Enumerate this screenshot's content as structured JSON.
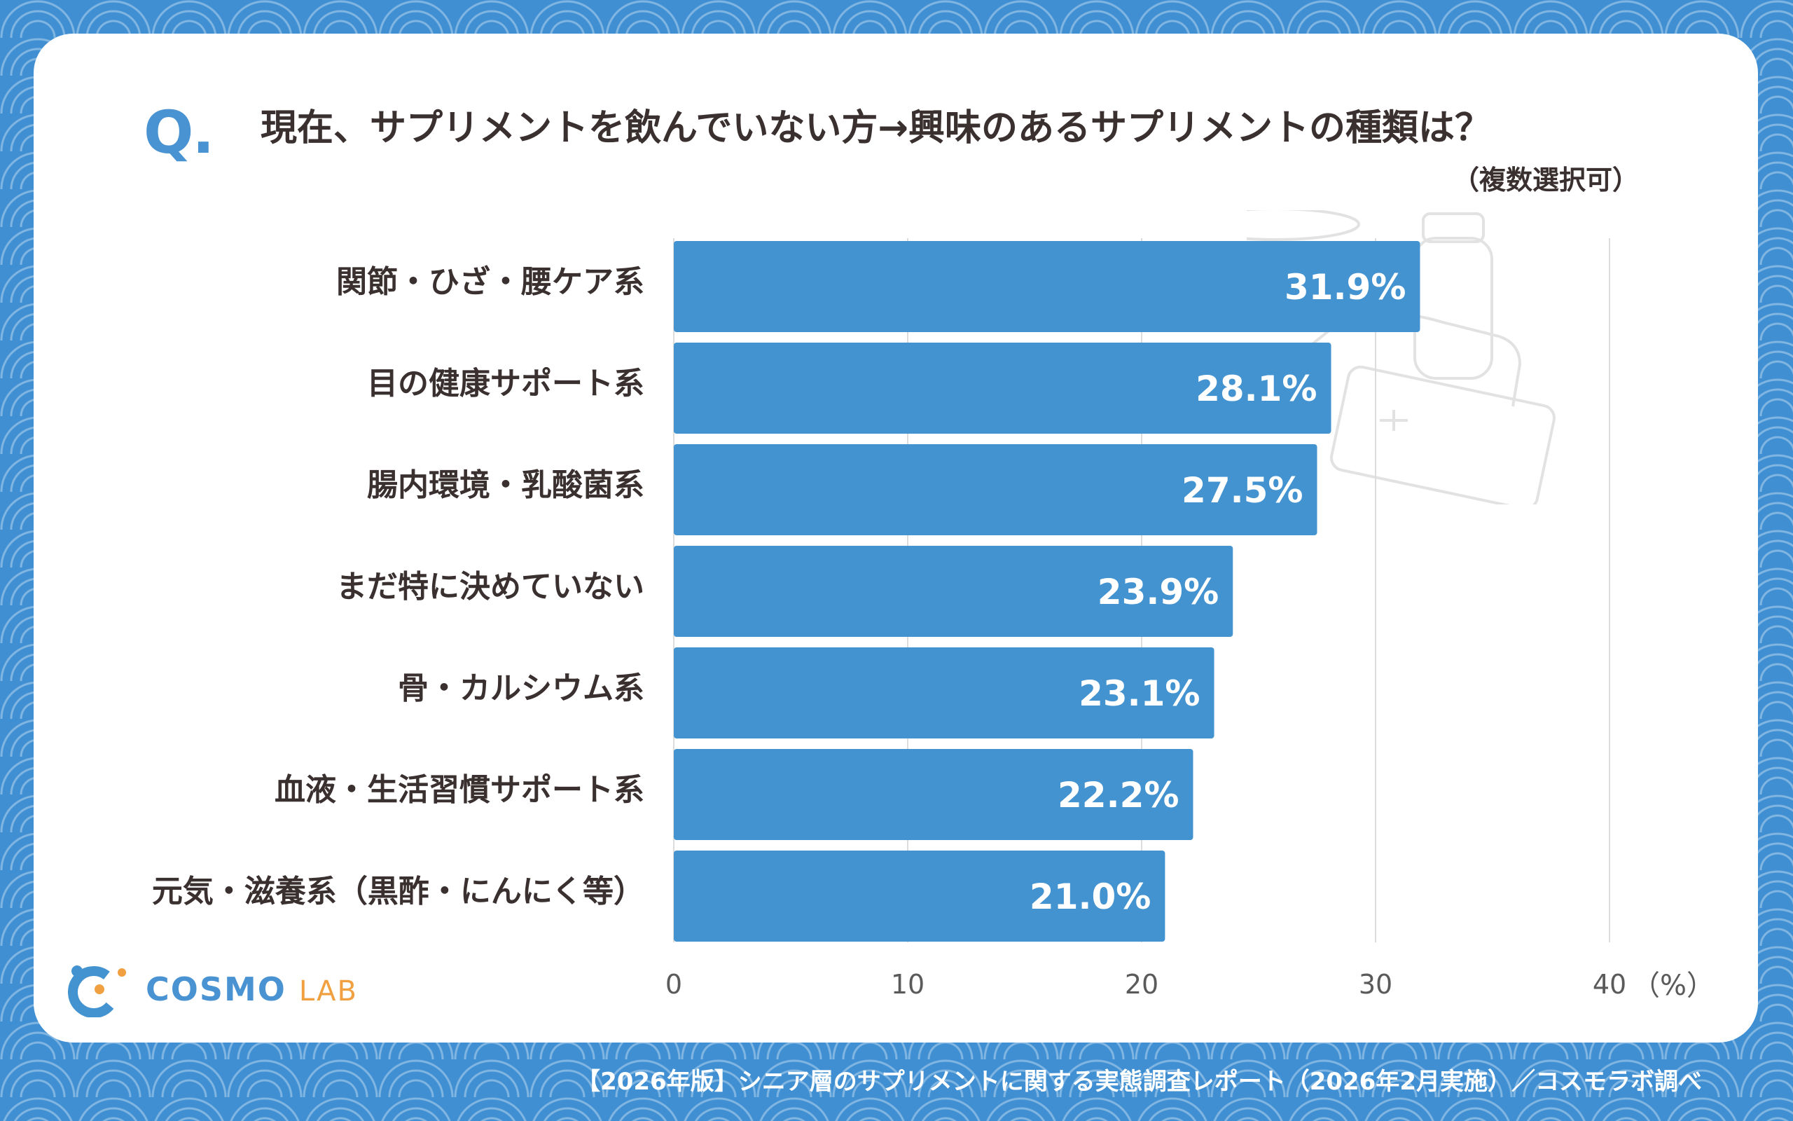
{
  "header": {
    "q_mark": "Q.",
    "title": "現在、サプリメントを飲んでいない方→興味のあるサプリメントの種類は？",
    "subtitle": "（複数選択可）"
  },
  "chart_data": {
    "type": "bar",
    "orientation": "horizontal",
    "categories": [
      "関節・ひざ・腰ケア系",
      "目の健康サポート系",
      "腸内環境・乳酸菌系",
      "まだ特に決めていない",
      "骨・カルシウム系",
      "血液・生活習慣サポート系",
      "元気・滋養系（黒酢・にんにく等）"
    ],
    "values": [
      31.9,
      28.1,
      27.5,
      23.9,
      23.1,
      22.2,
      21.0
    ],
    "value_labels": [
      "31.9%",
      "28.1%",
      "27.5%",
      "23.9%",
      "23.1%",
      "22.2%",
      "21.0%"
    ],
    "xlim": [
      0,
      40
    ],
    "xticks": [
      "0",
      "10",
      "20",
      "30",
      "40"
    ],
    "unit": "（%）",
    "grid": true,
    "bar_color": "#4393d1"
  },
  "logo": {
    "name_main": "COSMO",
    "name_sub": "LAB"
  },
  "footer": {
    "source": "【2026年版】シニア層のサプリメントに関する実態調査レポート（2026年2月実施）／コスモラボ調べ"
  },
  "colors": {
    "accent": "#4393d1",
    "text": "#3a3030",
    "logo_orange": "#f0a040"
  }
}
